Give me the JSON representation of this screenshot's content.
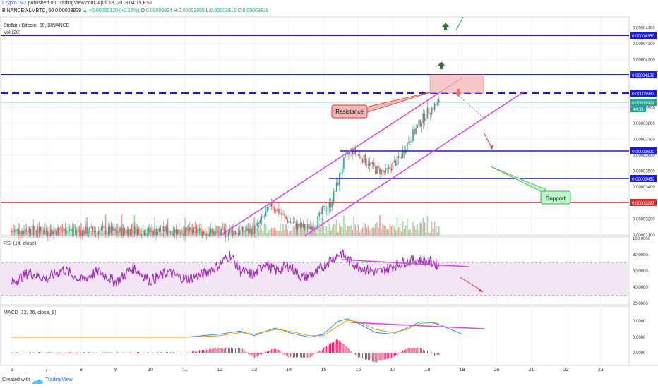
{
  "header": {
    "publisher": "CryptoTM2",
    "published_text": "published on TradingView.com, April 18, 2018 04:15 EST",
    "symbol_line": "BINANCE:XLMBTC, 60",
    "last": "0.00003929",
    "change": "▲ +0.00000120 (+3.15%)",
    "o_label": "O:",
    "o": "0.00003924",
    "h_label": "H:",
    "h": "0.00003955",
    "l_label": "L:",
    "l": "0.00003916",
    "c_label": "C:",
    "c": "0.00003929"
  },
  "footer": {
    "created_with": "Created with",
    "brand": "TradingView"
  },
  "colors": {
    "up": "#26a69a",
    "down": "#ef5350",
    "channel": "#e040fb",
    "level": "#1a1aeb",
    "support_line": "#d32f2f",
    "rsi": "#9c27b0",
    "rsi_band": "#f3e5f5",
    "macd": "#2196f3",
    "signal": "#ff9800",
    "hist": "#e91e63",
    "annotation_green": "#4caf50",
    "annotation_red": "#e53935"
  },
  "panes": {
    "price_title": "Stellar / Bitcoin, 60, BINANCE",
    "vol_title": "Vol (20)",
    "rsi_title": "RSI (14, close)",
    "macd_title": "MACD (12, 26, close, 9)"
  },
  "labels": {
    "price_badges": [
      "0.00004350",
      "0.00004100",
      "0.00003987",
      "0.00003929",
      "44:33",
      "0.00003620",
      "0.00003450",
      "0.00003297"
    ],
    "resistance": "Resistance",
    "support": "Support"
  },
  "chart_data": [
    {
      "type": "candlestick",
      "title": "Stellar / Bitcoin, 60, BINANCE",
      "x_ticks": [
        "6",
        "7",
        "8",
        "9",
        "10",
        "11",
        "12",
        "13",
        "14",
        "15",
        "16",
        "17",
        "18",
        "19",
        "20",
        "21",
        "22",
        "23"
      ],
      "y_ticks": [
        "0.00004400",
        "0.00004300",
        "0.00004200",
        "0.00004100",
        "0.00004000",
        "0.00003900",
        "0.00003800",
        "0.00003700",
        "0.00003600",
        "0.00003500",
        "0.00003400",
        "0.00003300",
        "0.00003200",
        "0.00003100"
      ],
      "ylim": [
        3.095e-05,
        4.46e-05
      ],
      "xlim": [
        5.7,
        23.8
      ],
      "close_path": [
        [
          6.0,
          3.12e-05
        ],
        [
          6.5,
          3.13e-05
        ],
        [
          7.0,
          3.12e-05
        ],
        [
          7.5,
          3.13e-05
        ],
        [
          8.0,
          3.12e-05
        ],
        [
          8.5,
          3.13e-05
        ],
        [
          9.0,
          3.12e-05
        ],
        [
          9.5,
          3.13e-05
        ],
        [
          10.0,
          3.12e-05
        ],
        [
          10.5,
          3.13e-05
        ],
        [
          11.0,
          3.12e-05
        ],
        [
          11.5,
          3.12e-05
        ],
        [
          12.0,
          3.11e-05
        ],
        [
          12.6,
          3.12e-05
        ],
        [
          13.0,
          3.13e-05
        ],
        [
          13.3,
          3.22e-05
        ],
        [
          13.5,
          3.29e-05
        ],
        [
          13.7,
          3.25e-05
        ],
        [
          13.9,
          3.2e-05
        ],
        [
          14.2,
          3.16e-05
        ],
        [
          14.5,
          3.14e-05
        ],
        [
          14.8,
          3.18e-05
        ],
        [
          15.0,
          3.26e-05
        ],
        [
          15.2,
          3.29e-05
        ],
        [
          15.4,
          3.42e-05
        ],
        [
          15.6,
          3.57e-05
        ],
        [
          15.8,
          3.63e-05
        ],
        [
          16.0,
          3.6e-05
        ],
        [
          16.2,
          3.57e-05
        ],
        [
          16.5,
          3.51e-05
        ],
        [
          16.8,
          3.49e-05
        ],
        [
          17.0,
          3.54e-05
        ],
        [
          17.2,
          3.58e-05
        ],
        [
          17.4,
          3.67e-05
        ],
        [
          17.6,
          3.74e-05
        ],
        [
          17.8,
          3.81e-05
        ],
        [
          18.0,
          3.87e-05
        ],
        [
          18.2,
          3.91e-05
        ],
        [
          18.35,
          3.93e-05
        ]
      ],
      "volume_scale": "Vol (20)"
    },
    {
      "type": "line",
      "title": "RSI (14, close)",
      "y_ticks": [
        "100.0000",
        "80.0000",
        "60.0000",
        "40.0000",
        "20.0000"
      ],
      "ylim": [
        20,
        100
      ],
      "overbought": 70,
      "oversold": 30,
      "x": [
        6.0,
        6.5,
        7.0,
        7.5,
        8.0,
        8.5,
        9.0,
        9.5,
        10.0,
        10.5,
        11.0,
        11.5,
        12.0,
        12.3,
        12.6,
        13.0,
        13.3,
        13.6,
        14.0,
        14.4,
        14.8,
        15.2,
        15.5,
        15.8,
        16.2,
        16.6,
        17.0,
        17.4,
        17.8,
        18.2,
        18.35
      ],
      "values": [
        45,
        58,
        50,
        62,
        48,
        60,
        46,
        64,
        48,
        58,
        50,
        55,
        68,
        80,
        60,
        55,
        70,
        60,
        66,
        52,
        58,
        74,
        82,
        70,
        62,
        58,
        66,
        72,
        74,
        70,
        66
      ]
    },
    {
      "type": "line",
      "title": "MACD (12, 26, close, 9)",
      "y_ticks": [
        "0.0000",
        "0.0000",
        "0.0000"
      ],
      "series": [
        {
          "name": "MACD",
          "x": [
            6.0,
            7.0,
            8.0,
            9.0,
            10.0,
            11.0,
            12.0,
            12.6,
            13.0,
            13.6,
            14.0,
            14.6,
            15.0,
            15.4,
            15.7,
            16.0,
            16.5,
            17.0,
            17.4,
            17.8,
            18.2,
            18.35,
            19.0
          ],
          "values": [
            0,
            0,
            0,
            0,
            0,
            0,
            0.2,
            0.4,
            0.1,
            0.6,
            0.3,
            0.0,
            0.2,
            1.0,
            1.2,
            0.9,
            0.3,
            0.2,
            0.6,
            1.0,
            0.9,
            0.8,
            0.2
          ]
        },
        {
          "name": "Signal",
          "x": [
            6.0,
            7.0,
            8.0,
            9.0,
            10.0,
            11.0,
            12.0,
            12.6,
            13.0,
            13.6,
            14.0,
            14.6,
            15.0,
            15.4,
            15.7,
            16.0,
            16.5,
            17.0,
            17.4,
            17.8,
            18.2,
            18.35
          ],
          "values": [
            0,
            0,
            0,
            0,
            0,
            0,
            0.1,
            0.3,
            0.2,
            0.5,
            0.4,
            0.1,
            0.1,
            0.7,
            1.1,
            1.0,
            0.5,
            0.3,
            0.5,
            0.9,
            0.95,
            0.85
          ]
        }
      ]
    }
  ]
}
